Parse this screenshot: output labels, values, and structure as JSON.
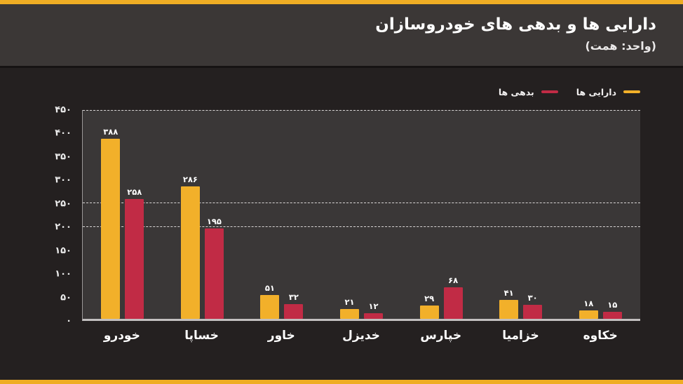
{
  "page": {
    "title": "دارایی ها و بدهی های خودروسازان",
    "subtitle": "(واحد: همت)"
  },
  "colors": {
    "accent_yellow": "#EFAD24",
    "assets_yellow": "#F2B02A",
    "liabilities_red": "#C12B45",
    "header_bg": "#3B3736",
    "body_bg": "#242020",
    "plot_bg": "#3A3737",
    "text": "#FFFFFF"
  },
  "legend": {
    "items": [
      {
        "label": "دارایی ها",
        "color": "#F2B02A"
      },
      {
        "label": "بدهی ها",
        "color": "#C12B45"
      }
    ]
  },
  "chart_data": {
    "type": "bar",
    "title": "دارایی ها و بدهی های خودروسازان",
    "subtitle": "(واحد: همت)",
    "categories": [
      "خودرو",
      "خساپا",
      "خاور",
      "خدیزل",
      "خپارس",
      "خزامیا",
      "خکاوه"
    ],
    "series": [
      {
        "name": "دارایی ها",
        "color": "#F2B02A",
        "values": [
          388,
          286,
          51,
          21,
          29,
          41,
          18
        ],
        "labels": [
          "۳۸۸",
          "۲۸۶",
          "۵۱",
          "۲۱",
          "۲۹",
          "۴۱",
          "۱۸"
        ]
      },
      {
        "name": "بدهی ها",
        "color": "#C12B45",
        "values": [
          258,
          195,
          32,
          12,
          68,
          30,
          15
        ],
        "labels": [
          "۲۵۸",
          "۱۹۵",
          "۳۲",
          "۱۲",
          "۶۸",
          "۳۰",
          "۱۵"
        ]
      }
    ],
    "ylim": [
      0,
      450
    ],
    "yticks": {
      "values": [
        450,
        400,
        350,
        300,
        250,
        200,
        150,
        100,
        50,
        0
      ],
      "labels": [
        "۴۵۰",
        "۴۰۰",
        "۳۵۰",
        "۳۰۰",
        "۲۵۰",
        "۲۰۰",
        "۱۵۰",
        "۱۰۰",
        "۵۰",
        "۰"
      ]
    },
    "gridlines": [
      450,
      250,
      200
    ],
    "grid_style": "dashed",
    "legend_position": "top-right",
    "direction": "rtl"
  }
}
